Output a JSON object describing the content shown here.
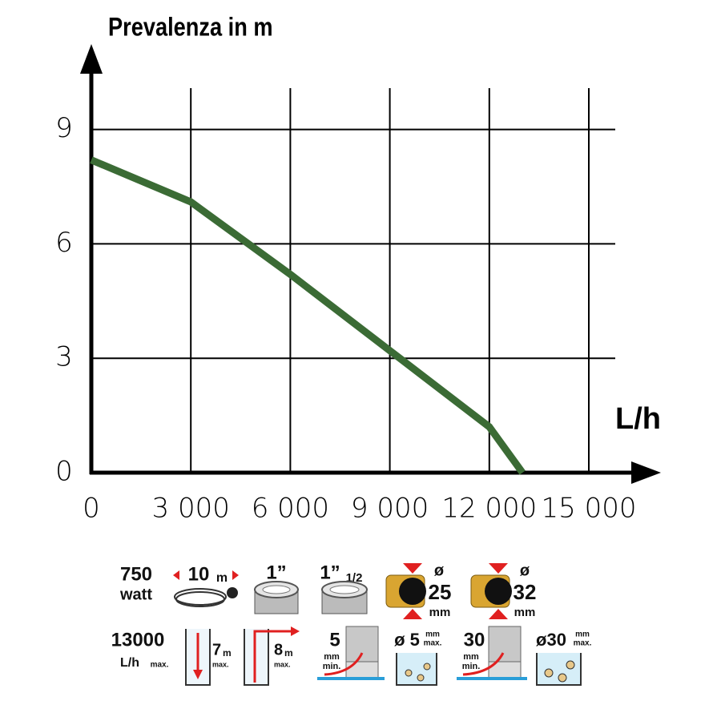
{
  "chart_data": {
    "type": "line",
    "title": "Prevalenza in m",
    "x_label": "L/h",
    "x": [
      0,
      3000,
      6000,
      9000,
      12000,
      13000
    ],
    "values": [
      8.2,
      7.1,
      5.2,
      3.2,
      1.2,
      0
    ],
    "color": "#3b6b35",
    "xlim": [
      0,
      15000
    ],
    "xticks": [
      0,
      {
        "value": 3000,
        "label": "3 000"
      },
      {
        "value": 6000,
        "label": "6 000"
      },
      {
        "value": 9000,
        "label": "9 000"
      },
      {
        "value": 12000,
        "label": "12 000"
      },
      {
        "value": 15000,
        "label": "15 000"
      }
    ],
    "ylim": [
      0,
      10
    ],
    "yticks": [
      0,
      3,
      6,
      9
    ],
    "grid": true
  },
  "specs": {
    "power": 750,
    "power_unit": "watt",
    "cable": 10,
    "cable_unit": "m",
    "outlet_1": "1”",
    "outlet_2": "1”",
    "outlet_2_fraction": "1/2",
    "hose_1_symbol": "ø",
    "hose_1": 25,
    "hose_1_unit": "mm",
    "hose_2_symbol": "ø",
    "hose_2": 32,
    "hose_2_unit": "mm",
    "flow": 13000,
    "flow_unit": "L/h",
    "flow_max": "max.",
    "depth": 7,
    "depth_unit": "m",
    "depth_max": "max.",
    "head": 8,
    "head_unit": "m",
    "head_max": "max.",
    "min_level_1": 5,
    "min_level_1_unit": "mm",
    "min_level_1_min": "min.",
    "particle_1": "ø 5",
    "particle_1_unit": "mm",
    "particle_1_max": "max.",
    "min_level_2": 30,
    "min_level_2_unit": "mm",
    "min_level_2_min": "min.",
    "particle_2": "ø30",
    "particle_2_unit": "mm",
    "particle_2_max": "max."
  }
}
